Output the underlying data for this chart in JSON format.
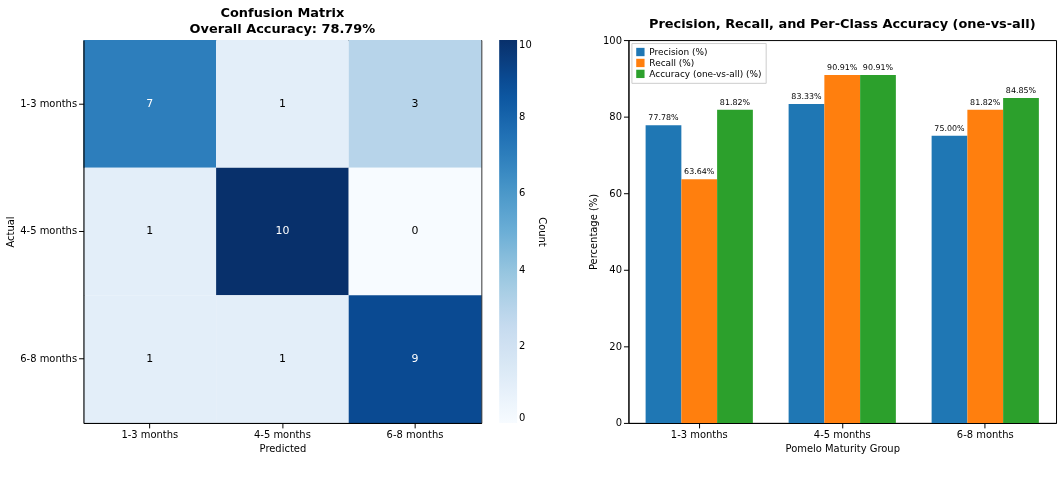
{
  "chart_data": [
    {
      "type": "heatmap",
      "title": "Confusion Matrix",
      "subtitle": "Overall Accuracy: 78.79%",
      "xlabel": "Predicted",
      "ylabel": "Actual",
      "clabel": "Count",
      "categories": [
        "1-3 months",
        "4-5 months",
        "6-8 months"
      ],
      "y_categories": [
        "1-3 months",
        "4-5 months",
        "6-8 months"
      ],
      "cells": [
        [
          7,
          1,
          3
        ],
        [
          1,
          10,
          0
        ],
        [
          1,
          1,
          9
        ]
      ],
      "clim": [
        0,
        10
      ],
      "cticks": [
        0,
        2,
        4,
        6,
        8,
        10
      ],
      "data_labels": true
    },
    {
      "type": "bar",
      "title": "Precision, Recall, and Per-Class Accuracy (one-vs-all)",
      "xlabel": "Pomelo Maturity Group",
      "ylabel": "Percentage (%)",
      "categories": [
        "1-3 months",
        "4-5 months",
        "6-8 months"
      ],
      "series": [
        {
          "name": "Precision (%)",
          "color": "#1f77b4",
          "values": [
            77.78,
            83.33,
            75.0
          ],
          "value_labels": [
            "77.78%",
            "83.33%",
            "75.00%"
          ]
        },
        {
          "name": "Recall (%)",
          "color": "#ff7f0e",
          "values": [
            63.64,
            90.91,
            81.82
          ],
          "value_labels": [
            "63.64%",
            "90.91%",
            "81.82%"
          ]
        },
        {
          "name": "Accuracy (one-vs-all) (%)",
          "color": "#2ca02c",
          "values": [
            81.82,
            90.91,
            84.85
          ],
          "value_labels": [
            "81.82%",
            "90.91%",
            "84.85%"
          ]
        }
      ],
      "ylim": [
        0,
        100
      ],
      "yticks": [
        0,
        20,
        40,
        60,
        80,
        100
      ],
      "legend": "top left",
      "grid": false
    }
  ]
}
